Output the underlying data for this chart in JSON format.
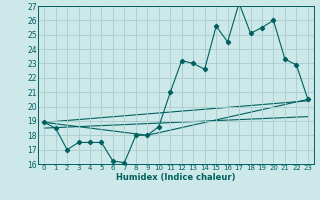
{
  "xlabel": "Humidex (Indice chaleur)",
  "xlim": [
    -0.5,
    23.5
  ],
  "ylim": [
    16,
    27
  ],
  "xticks": [
    0,
    1,
    2,
    3,
    4,
    5,
    6,
    7,
    8,
    9,
    10,
    11,
    12,
    13,
    14,
    15,
    16,
    17,
    18,
    19,
    20,
    21,
    22,
    23
  ],
  "yticks": [
    16,
    17,
    18,
    19,
    20,
    21,
    22,
    23,
    24,
    25,
    26,
    27
  ],
  "bg_color": "#cce8e8",
  "grid_color": "#aacccc",
  "line_color": "#006060",
  "main_series": {
    "x": [
      0,
      1,
      2,
      3,
      4,
      5,
      6,
      7,
      8,
      9,
      10,
      11,
      12,
      13,
      14,
      15,
      16,
      17,
      18,
      19,
      20,
      21,
      22,
      23
    ],
    "y": [
      18.9,
      18.5,
      17.0,
      17.5,
      17.5,
      17.5,
      16.2,
      16.1,
      18.0,
      18.0,
      18.6,
      21.0,
      23.2,
      23.0,
      22.6,
      25.6,
      24.5,
      27.2,
      25.1,
      25.5,
      26.0,
      23.3,
      22.9,
      20.5
    ]
  },
  "trend_lines": [
    {
      "x": [
        0,
        23
      ],
      "y": [
        18.9,
        20.4
      ]
    },
    {
      "x": [
        0,
        23
      ],
      "y": [
        18.5,
        19.3
      ]
    },
    {
      "x": [
        0,
        9,
        23
      ],
      "y": [
        18.9,
        18.0,
        20.5
      ]
    }
  ]
}
